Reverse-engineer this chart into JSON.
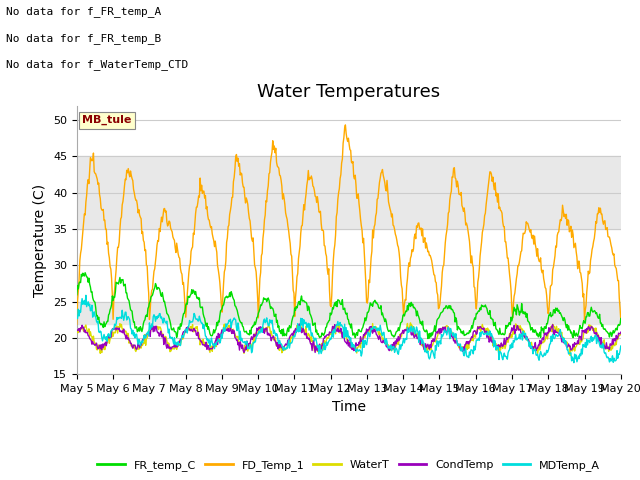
{
  "title": "Water Temperatures",
  "xlabel": "Time",
  "ylabel": "Temperature (C)",
  "ylim": [
    15,
    52
  ],
  "yticks": [
    15,
    20,
    25,
    30,
    35,
    40,
    45,
    50
  ],
  "xticklabels": [
    "May 5",
    "May 6",
    "May 7",
    "May 8",
    "May 9",
    "May 10",
    "May 11",
    "May 12",
    "May 13",
    "May 14",
    "May 15",
    "May 16",
    "May 17",
    "May 18",
    "May 19",
    "May 20"
  ],
  "no_data_lines": [
    "No data for f_FR_temp_A",
    "No data for f_FR_temp_B",
    "No data for f_WaterTemp_CTD"
  ],
  "mb_tule_label": "MB_tule",
  "legend_entries": [
    "FR_temp_C",
    "FD_Temp_1",
    "WaterT",
    "CondTemp",
    "MDTemp_A"
  ],
  "line_colors": {
    "FR_temp_C": "#00dd00",
    "FD_Temp_1": "#ffaa00",
    "WaterT": "#dddd00",
    "CondTemp": "#9900bb",
    "MDTemp_A": "#00dddd"
  },
  "shaded_band_upper": [
    35,
    45
  ],
  "shaded_band_lower": [
    22,
    25
  ],
  "background_color": "#ffffff",
  "title_fontsize": 13,
  "axis_label_fontsize": 10,
  "tick_fontsize": 8,
  "n_points": 720
}
